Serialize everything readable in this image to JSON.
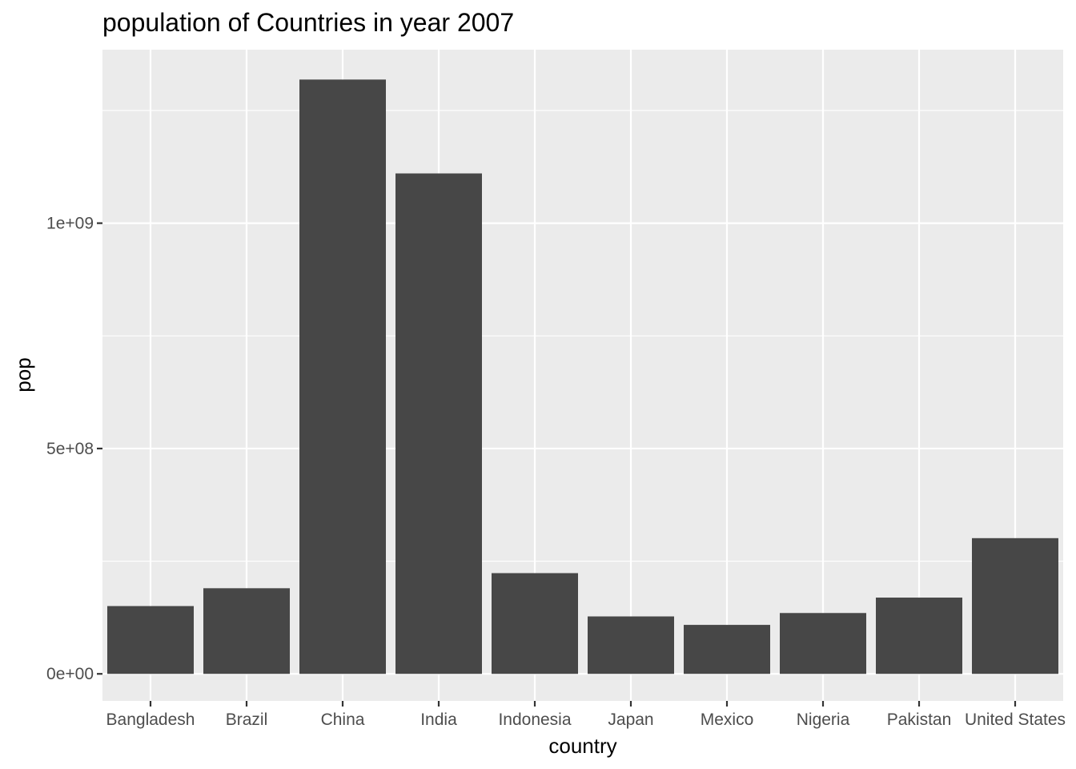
{
  "chart_data": {
    "type": "bar",
    "title": "population of Countries in year 2007",
    "xlabel": "country",
    "ylabel": "pop",
    "categories": [
      "Bangladesh",
      "Brazil",
      "China",
      "India",
      "Indonesia",
      "Japan",
      "Mexico",
      "Nigeria",
      "Pakistan",
      "United States"
    ],
    "values": [
      150448339,
      190010647,
      1318683096,
      1110396331,
      223547000,
      127467972,
      108700891,
      135031164,
      169270617,
      301139947
    ],
    "ylim": [
      -60000000,
      1385000000
    ],
    "yticks": [
      0,
      500000000,
      1000000000
    ],
    "ytick_labels": [
      "0e+00",
      "5e+08",
      "1e+09"
    ],
    "grid": true,
    "legend": "none",
    "bar_color": "#474747",
    "panel_color": "#ebebeb"
  }
}
